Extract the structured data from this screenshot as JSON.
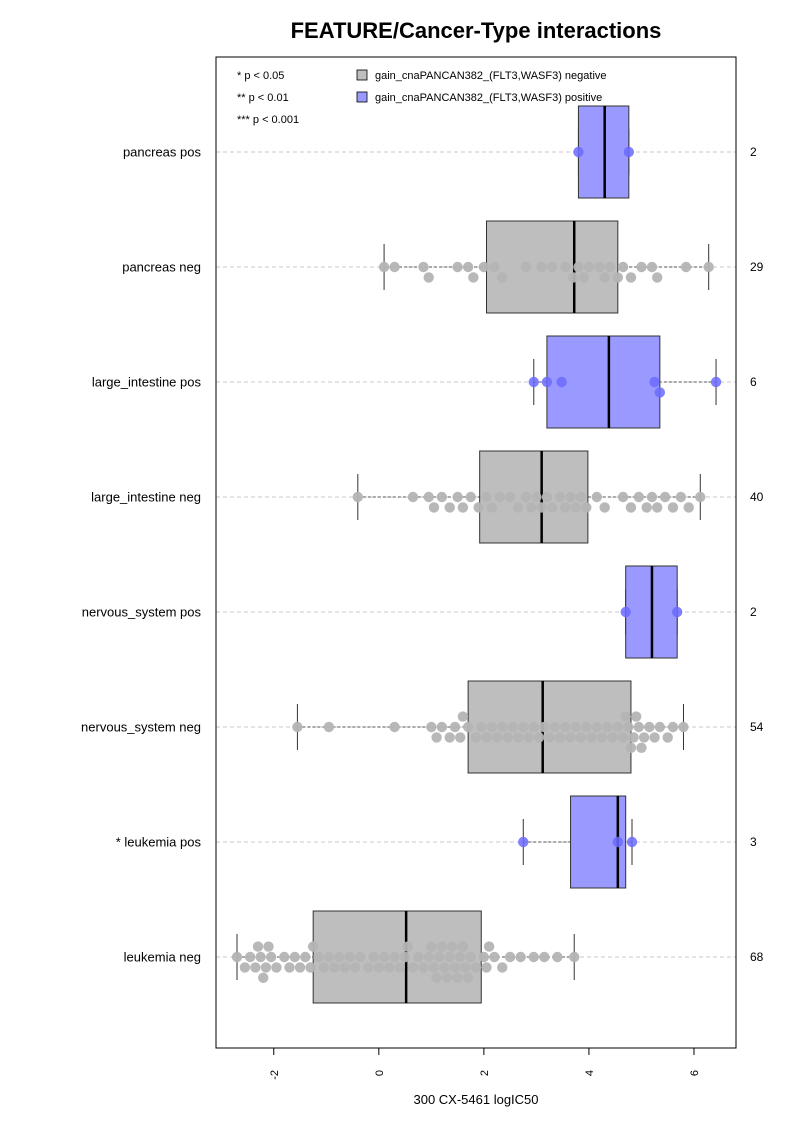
{
  "chart_data": {
    "type": "boxplot",
    "title": "FEATURE/Cancer-Type interactions",
    "xlabel": "300 CX-5461 logIC50",
    "xlim": [
      -3.1,
      6.8
    ],
    "xticks": [
      "-2",
      "0",
      "2",
      "4",
      "6"
    ],
    "xtick_values": [
      -2,
      0,
      2,
      4,
      6
    ],
    "orientation": "horizontal",
    "significance_legend": [
      "* p < 0.05",
      "** p < 0.01",
      "*** p < 0.001"
    ],
    "legend": [
      {
        "label": "gain_cnaPANCAN382_(FLT3,WASF3) negative",
        "color": "#bebebe"
      },
      {
        "label": "gain_cnaPANCAN382_(FLT3,WASF3) positive",
        "color": "#9999ff"
      }
    ],
    "colors": {
      "negative_box": "#bebebe",
      "positive_box": "#9999ff",
      "negative_point": "#b4b4b4",
      "positive_point": "#6b6bff"
    },
    "groups": [
      {
        "label": "pancreas pos",
        "count": "2",
        "kind": "pos",
        "whisker_low": 3.8,
        "q1": 3.8,
        "median": 4.3,
        "q3": 4.76,
        "whisker_high": 4.76,
        "points": [
          3.8,
          4.76
        ]
      },
      {
        "label": "pancreas neg",
        "count": "29",
        "kind": "neg",
        "whisker_low": 0.1,
        "q1": 2.05,
        "median": 3.72,
        "q3": 4.55,
        "whisker_high": 6.28,
        "points": [
          0.1,
          0.3,
          0.85,
          0.95,
          1.5,
          1.7,
          1.8,
          2.0,
          2.2,
          2.35,
          2.8,
          3.1,
          3.3,
          3.55,
          3.7,
          3.8,
          3.9,
          4.0,
          4.2,
          4.3,
          4.4,
          4.55,
          4.65,
          4.8,
          5.0,
          5.2,
          5.3,
          5.85,
          6.28
        ]
      },
      {
        "label": "large_intestine pos",
        "count": "6",
        "kind": "pos",
        "whisker_low": 2.95,
        "q1": 3.2,
        "median": 4.38,
        "q3": 5.35,
        "whisker_high": 6.42,
        "points": [
          2.95,
          3.2,
          3.48,
          5.25,
          5.35,
          6.42
        ]
      },
      {
        "label": "large_intestine neg",
        "count": "40",
        "kind": "neg",
        "whisker_low": -0.4,
        "q1": 1.92,
        "median": 3.1,
        "q3": 3.98,
        "whisker_high": 6.12,
        "points": [
          -0.4,
          0.65,
          0.95,
          1.05,
          1.2,
          1.35,
          1.5,
          1.6,
          1.75,
          1.9,
          2.05,
          2.15,
          2.3,
          2.5,
          2.65,
          2.8,
          2.9,
          3.0,
          3.1,
          3.2,
          3.3,
          3.45,
          3.55,
          3.65,
          3.75,
          3.85,
          3.95,
          4.15,
          4.3,
          4.65,
          4.8,
          4.95,
          5.1,
          5.2,
          5.3,
          5.45,
          5.6,
          5.75,
          5.9,
          6.12
        ]
      },
      {
        "label": "nervous_system pos",
        "count": "2",
        "kind": "pos",
        "whisker_low": 4.7,
        "q1": 4.7,
        "median": 5.2,
        "q3": 5.68,
        "whisker_high": 5.68,
        "points": [
          4.7,
          5.68
        ]
      },
      {
        "label": "nervous_system neg",
        "count": "54",
        "kind": "neg",
        "whisker_low": -1.55,
        "q1": 1.7,
        "median": 3.12,
        "q3": 4.8,
        "whisker_high": 5.8,
        "points": [
          -1.55,
          -0.95,
          0.3,
          1.0,
          1.1,
          1.2,
          1.35,
          1.45,
          1.55,
          1.6,
          1.7,
          1.85,
          1.95,
          2.05,
          2.15,
          2.25,
          2.35,
          2.45,
          2.55,
          2.65,
          2.75,
          2.85,
          2.95,
          3.05,
          3.15,
          3.25,
          3.35,
          3.45,
          3.55,
          3.65,
          3.75,
          3.85,
          3.95,
          4.05,
          4.15,
          4.25,
          4.35,
          4.45,
          4.55,
          4.65,
          4.7,
          4.75,
          4.8,
          4.85,
          4.9,
          4.95,
          5.0,
          5.05,
          5.15,
          5.25,
          5.35,
          5.5,
          5.6,
          5.8
        ]
      },
      {
        "label": "* leukemia pos",
        "count": "3",
        "kind": "pos",
        "whisker_low": 2.75,
        "q1": 3.65,
        "median": 4.55,
        "q3": 4.7,
        "whisker_high": 4.82,
        "points": [
          2.75,
          4.55,
          4.82
        ]
      },
      {
        "label": "leukemia neg",
        "count": "68",
        "kind": "neg",
        "whisker_low": -2.7,
        "q1": -1.25,
        "median": 0.52,
        "q3": 1.95,
        "whisker_high": 3.72,
        "points": [
          -2.7,
          -2.55,
          -2.45,
          -2.35,
          -2.3,
          -2.25,
          -2.2,
          -2.15,
          -2.1,
          -2.05,
          -1.95,
          -1.8,
          -1.7,
          -1.6,
          -1.5,
          -1.4,
          -1.3,
          -1.25,
          -1.15,
          -1.05,
          -0.95,
          -0.85,
          -0.75,
          -0.65,
          -0.55,
          -0.45,
          -0.35,
          -0.2,
          -0.1,
          0.0,
          0.1,
          0.2,
          0.3,
          0.4,
          0.5,
          0.55,
          0.65,
          0.75,
          0.85,
          0.95,
          1.0,
          1.05,
          1.1,
          1.15,
          1.2,
          1.25,
          1.3,
          1.35,
          1.4,
          1.45,
          1.5,
          1.55,
          1.6,
          1.65,
          1.7,
          1.75,
          1.85,
          2.0,
          2.05,
          2.1,
          2.2,
          2.35,
          2.5,
          2.7,
          2.95,
          3.15,
          3.4,
          3.72
        ]
      }
    ]
  }
}
